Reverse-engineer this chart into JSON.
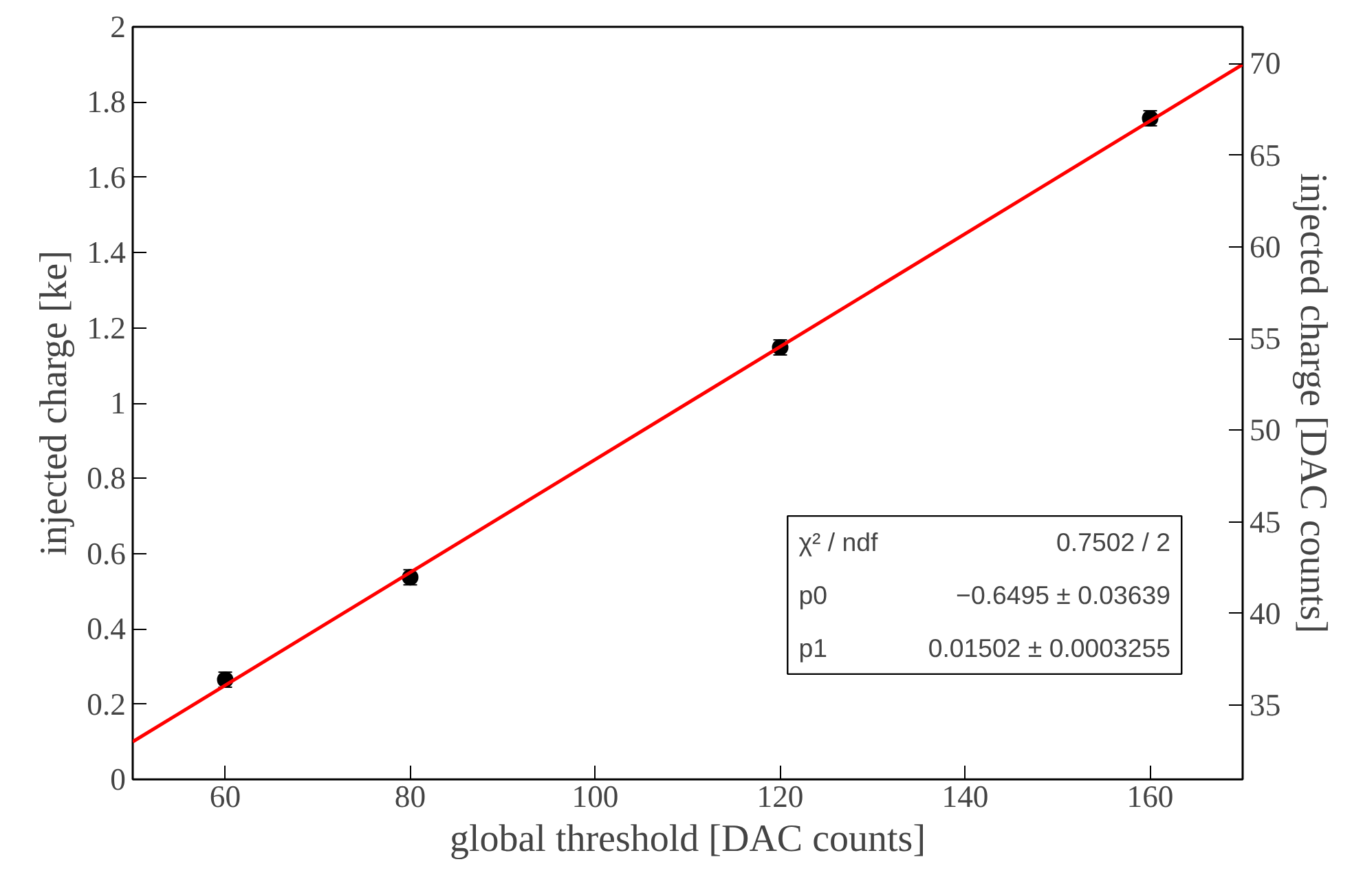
{
  "chart_data": {
    "type": "scatter",
    "xlabel": "global threshold [DAC counts]",
    "ylabel": "injected charge [ke]",
    "y2label": "injected charge [DAC counts]",
    "xlim": [
      50,
      170
    ],
    "xticks": [
      60,
      80,
      100,
      120,
      140,
      160
    ],
    "ylim": [
      0,
      2
    ],
    "yticks": [
      0,
      0.2,
      0.4,
      0.6,
      0.8,
      1,
      1.2,
      1.4,
      1.6,
      1.8,
      2
    ],
    "y2lim": [
      30.95,
      72.0
    ],
    "y2ticks": [
      35,
      40,
      45,
      50,
      55,
      60,
      65,
      70
    ],
    "grid": false,
    "series": [
      {
        "color": "#000000",
        "marker": "circle",
        "x": [
          60,
          80,
          120,
          160
        ],
        "values": [
          0.265,
          0.537,
          1.148,
          1.757
        ],
        "errors": [
          0.02,
          0.02,
          0.02,
          0.02
        ]
      },
      {
        "type": "line",
        "color": "#ff0000",
        "x": [
          50,
          170
        ],
        "values": [
          0.1,
          1.9
        ],
        "line_style": "solid"
      }
    ],
    "annotations": [
      "χ² / ndf",
      "0.7502 / 2",
      "p0",
      "−0.6495 ± 0.03639",
      "p1",
      "0.01502 ± 0.0003255"
    ]
  }
}
